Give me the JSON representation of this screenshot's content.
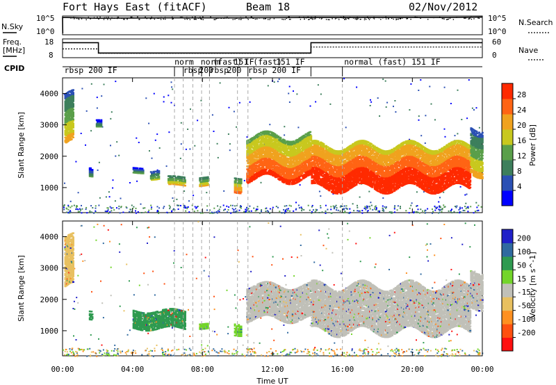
{
  "header": {
    "station": "Fort Hays East (fitACF)",
    "beam": "Beam 18",
    "date": "02/Nov/2012"
  },
  "strips": {
    "nsky_label": "N.Sky",
    "nsky_ticks": [
      "10^5",
      "10^0"
    ],
    "nsearch_label": "N.Search",
    "nsearch_ticks": [
      "10^5",
      "10^0"
    ],
    "freq_label_1": "Freq.",
    "freq_label_2": "[MHz]",
    "freq_ticks": [
      "18",
      "8"
    ],
    "nave_label": "Nave",
    "nave_ticks": [
      "60",
      "0"
    ],
    "cpid_label": "CPID"
  },
  "cpid_segments": [
    {
      "label": "rbsp 200 IF",
      "row": 1,
      "x_hours": 0.1
    },
    {
      "label": "norm",
      "row": 0,
      "x_hours": 6.4
    },
    {
      "label": "rbsp",
      "row": 1,
      "x_hours": 6.9
    },
    {
      "label": "200",
      "row": 1,
      "x_hours": 7.8
    },
    {
      "label": "norm",
      "row": 0,
      "x_hours": 7.9
    },
    {
      "label": "(fast)",
      "row": 0,
      "x_hours": 8.6
    },
    {
      "label": "rbsp",
      "row": 1,
      "x_hours": 8.4
    },
    {
      "label": "200",
      "row": 1,
      "x_hours": 9.4
    },
    {
      "label": "151",
      "row": 0,
      "x_hours": 9.8
    },
    {
      "label": "IF",
      "row": 0,
      "x_hours": 10.4
    },
    {
      "label": "rbsp 200 IF",
      "row": 1,
      "x_hours": 10.6
    },
    {
      "label": "(fast)",
      "row": 0,
      "x_hours": 10.9
    },
    {
      "label": "151 IF",
      "row": 0,
      "x_hours": 12.2
    },
    {
      "label": "normal (fast) 151 IF",
      "row": 0,
      "x_hours": 16.1
    }
  ],
  "axes": {
    "ylabel": "Slant Range [km]",
    "yticks": [
      "4000",
      "3000",
      "2000",
      "1000"
    ],
    "xticks": [
      "00:00",
      "04:00",
      "08:00",
      "12:00",
      "16:00",
      "20:00",
      "00:00"
    ],
    "xlabel": "Time UT"
  },
  "power_colorbar": {
    "label": "Power [dB]",
    "ticks": [
      "28",
      "24",
      "20",
      "16",
      "12",
      "8",
      "4"
    ]
  },
  "velocity_colorbar": {
    "label": "Velocity [m s^-1]",
    "ticks": [
      "200",
      "100",
      "50",
      "15",
      "-15",
      "-50",
      "-100",
      "-200"
    ]
  },
  "colors": {
    "power_scale": [
      "#0000ff",
      "#2b50b4",
      "#3d7f5c",
      "#5a9f4a",
      "#c8c81e",
      "#f0a21e",
      "#ff6414",
      "#ff2a00"
    ],
    "velocity_scale": [
      "#2020c8",
      "#306aa0",
      "#2f9a50",
      "#73d52a",
      "#c0c0b8",
      "#e8c060",
      "#ff9020",
      "#ff5010",
      "#ff1010"
    ]
  },
  "chart_data": {
    "type": "heatmap",
    "x_range_hours": [
      0,
      24
    ],
    "y_range_km": [
      200,
      4500
    ],
    "cpid_boundaries_hours": [
      6.4,
      6.9,
      7.45,
      7.95,
      8.4,
      10.0,
      10.6,
      16.0
    ],
    "sky_noise_log10": {
      "hours": [
        0,
        0.3,
        2,
        6,
        10,
        14,
        18,
        22,
        24
      ],
      "values": [
        4.6,
        4.6,
        4.4,
        4.5,
        4.5,
        4.6,
        4.6,
        4.6,
        4.7
      ]
    },
    "frequency_mhz": {
      "hours": [
        0,
        2.05,
        2.05,
        14.2,
        14.2,
        24
      ],
      "values": [
        16.0,
        16.0,
        10.5,
        10.5,
        16.0,
        16.0
      ]
    },
    "nave": {
      "hours": [
        0,
        2.05,
        2.05,
        14.2,
        14.2,
        24
      ],
      "values": [
        28,
        28,
        14,
        14,
        34,
        34
      ]
    },
    "power_db": [
      {
        "t0": 0.1,
        "t1": 0.6,
        "r0": 2400,
        "r1": 4000,
        "db": 14
      },
      {
        "t0": 1.5,
        "t1": 1.7,
        "r0": 1400,
        "r1": 1700,
        "db": 6
      },
      {
        "t0": 1.9,
        "t1": 2.2,
        "r0": 3000,
        "r1": 3250,
        "db": 6
      },
      {
        "t0": 4.0,
        "t1": 4.6,
        "r0": 1500,
        "r1": 1700,
        "db": 7
      },
      {
        "t0": 5.0,
        "t1": 5.5,
        "r0": 1300,
        "r1": 1600,
        "db": 9
      },
      {
        "t0": 6.0,
        "t1": 7.0,
        "r0": 1100,
        "r1": 1400,
        "db": 13
      },
      {
        "t0": 7.8,
        "t1": 8.3,
        "r0": 1100,
        "r1": 1400,
        "db": 12
      },
      {
        "t0": 9.8,
        "t1": 10.2,
        "r0": 900,
        "r1": 1400,
        "db": 16
      },
      {
        "t0": 10.5,
        "t1": 14.2,
        "r0": 1300,
        "r1": 2700,
        "db": 20
      },
      {
        "t0": 14.2,
        "t1": 23.3,
        "r0": 1000,
        "r1": 2400,
        "db": 24
      },
      {
        "t0": 23.3,
        "t1": 24.0,
        "r0": 1500,
        "r1": 3000,
        "db": 14
      }
    ],
    "velocity_ms": [
      {
        "t0": 0.1,
        "t1": 0.6,
        "r0": 2400,
        "r1": 4000,
        "v": -20
      },
      {
        "t0": 1.5,
        "t1": 1.7,
        "r0": 1400,
        "r1": 1700,
        "v": 60
      },
      {
        "t0": 4.0,
        "t1": 7.0,
        "r0": 1100,
        "r1": 1700,
        "v": 60
      },
      {
        "t0": 7.8,
        "t1": 8.3,
        "r0": 1100,
        "r1": 1300,
        "v": 20
      },
      {
        "t0": 9.8,
        "t1": 10.2,
        "r0": 900,
        "r1": 1300,
        "v": 20
      },
      {
        "t0": 10.5,
        "t1": 14.2,
        "r0": 1400,
        "r1": 2500,
        "v": 15
      },
      {
        "t0": 14.2,
        "t1": 23.3,
        "r0": 1000,
        "r1": 2500,
        "v": 0
      },
      {
        "t0": 23.3,
        "t1": 24.0,
        "r0": 1800,
        "r1": 3000,
        "v": 0
      }
    ]
  }
}
